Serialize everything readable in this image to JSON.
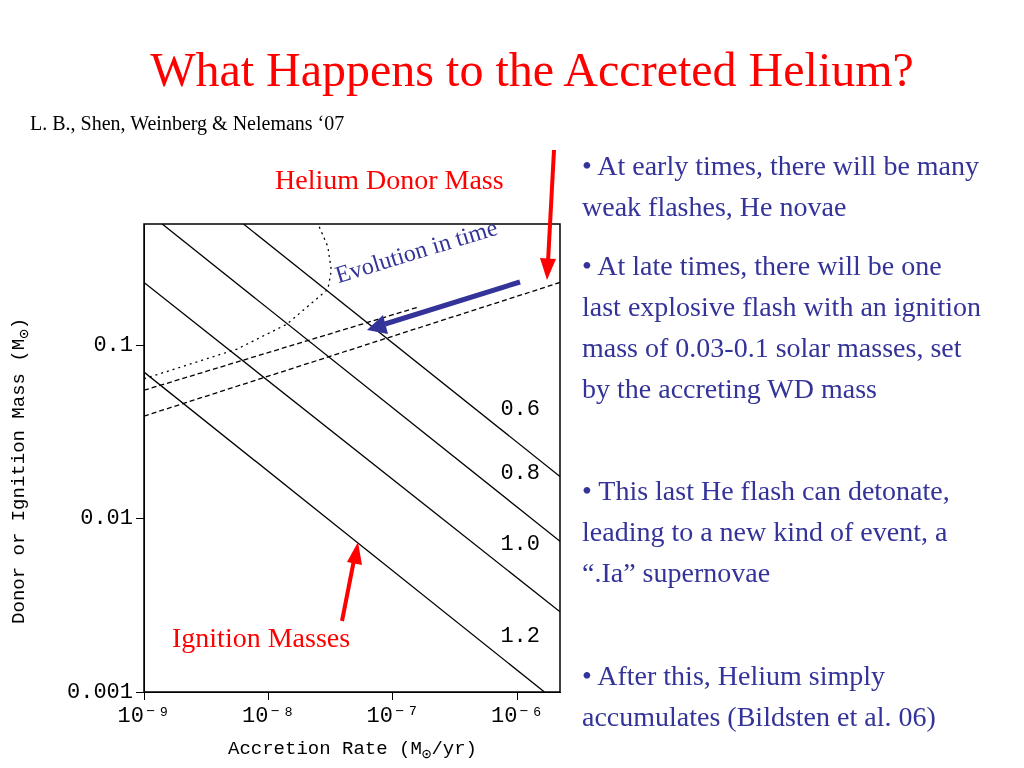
{
  "chart_data": {
    "type": "line",
    "title": "What Happens to the Accreted Helium?",
    "subtitle": "L. B., Shen, Weinberg & Nelemans ‘07",
    "xlabel": "Accretion Rate (M$_{⊙}$/yr)",
    "ylabel": "Donor or Ignition Mass (M$_{⊙}$)",
    "log": "xy",
    "grid": false,
    "legend": false,
    "xlim": [
      1e-09,
      2.2e-06
    ],
    "ylim": [
      0.001,
      0.5
    ],
    "xticks": [
      {
        "value": 1e-09,
        "label": "10⁻⁹"
      },
      {
        "value": 1e-08,
        "label": "10⁻⁸"
      },
      {
        "value": 1e-07,
        "label": "10⁻⁷"
      },
      {
        "value": 1e-06,
        "label": "10⁻⁶"
      }
    ],
    "yticks": [
      0.001,
      0.01,
      0.1
    ],
    "series": [
      {
        "name": "0.6",
        "color": "#000000",
        "line_style": "solid",
        "x": [
          6.3e-09,
          2.2e-06
        ],
        "values": [
          0.5,
          0.0175
        ]
      },
      {
        "name": "0.8",
        "color": "#000000",
        "line_style": "solid",
        "x": [
          1.4e-09,
          2.2e-06
        ],
        "values": [
          0.5,
          0.0074
        ]
      },
      {
        "name": "1.0",
        "color": "#000000",
        "line_style": "solid",
        "x": [
          1e-09,
          2.2e-06
        ],
        "values": [
          0.23,
          0.0029
        ]
      },
      {
        "name": "1.2",
        "color": "#000000",
        "line_style": "solid",
        "x": [
          1e-09,
          1.65e-06
        ],
        "values": [
          0.07,
          0.001
        ]
      },
      {
        "color": "#000000",
        "line_style": "dashed",
        "x": [
          1e-09,
          1.6e-07
        ],
        "values": [
          0.055,
          0.166
        ]
      },
      {
        "color": "#000000",
        "line_style": "dashed",
        "x": [
          1e-09,
          2.2e-06
        ],
        "values": [
          0.039,
          0.23
        ]
      },
      {
        "color": "#000000",
        "line_style": "dotted",
        "x": [
          1e-09,
          5.6e-09,
          1.4e-08,
          3e-08,
          3.2e-08,
          3e-08,
          2.5e-08
        ],
        "values": [
          0.064,
          0.095,
          0.132,
          0.21,
          0.27,
          0.37,
          0.5
        ]
      }
    ],
    "annotations": [
      "Helium Donor Mass",
      "Ignition Masses",
      "Evolution in time",
      "• At early times, there will be many weak flashes, He novae",
      "• At late times, there will be one last explosive flash with an ignition mass of 0.03-0.1 solar masses, set by the accreting WD mass",
      "• This last He flash can detonate, leading to a new kind of event, a “.Ia” supernovae",
      "• After this, Helium simply accumulates (Bildsten et al. 06)"
    ]
  }
}
